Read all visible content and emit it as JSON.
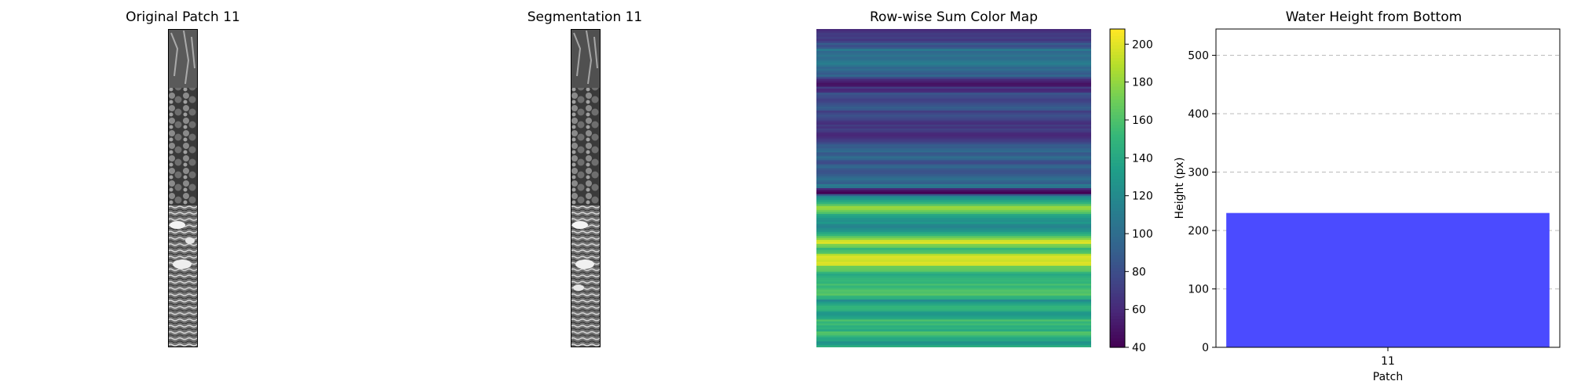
{
  "panels": {
    "original": {
      "title": "Original Patch 11"
    },
    "segmentation": {
      "title": "Segmentation 11"
    },
    "colormap": {
      "title": "Row-wise Sum Color Map",
      "colorbar_ticks": [
        40,
        60,
        80,
        100,
        120,
        140,
        160,
        180,
        200
      ],
      "colorbar_range": [
        40,
        208
      ],
      "row_values": [
        60,
        65,
        70,
        68,
        72,
        66,
        74,
        90,
        80,
        88,
        110,
        96,
        100,
        105,
        98,
        102,
        108,
        112,
        104,
        95,
        100,
        92,
        88,
        96,
        78,
        60,
        55,
        48,
        50,
        70,
        58,
        62,
        85,
        80,
        78,
        72,
        74,
        80,
        84,
        90,
        86,
        70,
        76,
        82,
        78,
        74,
        66,
        62,
        70,
        64,
        72,
        68,
        60,
        58,
        62,
        68,
        72,
        80,
        90,
        88,
        95,
        98,
        86,
        90,
        100,
        94,
        80,
        78,
        92,
        96,
        86,
        82,
        84,
        90,
        96,
        102,
        94,
        90,
        110,
        104,
        60,
        45,
        40,
        90,
        120,
        128,
        140,
        150,
        165,
        182,
        180,
        170,
        160,
        140,
        135,
        128,
        124,
        130,
        118,
        115,
        122,
        128,
        140,
        150,
        165,
        178,
        196,
        200,
        175,
        170,
        150,
        158,
        162,
        190,
        200,
        198,
        195,
        200,
        198,
        170,
        168,
        166,
        150,
        140,
        145,
        150,
        152,
        148,
        158,
        150,
        155,
        162,
        160,
        164,
        150,
        145,
        120,
        132,
        140,
        150,
        150,
        146,
        130,
        128,
        135,
        140,
        160,
        150,
        155,
        145,
        148,
        140,
        162,
        160,
        150,
        140,
        140,
        125,
        130,
        145
      ]
    },
    "barchart": {
      "title": "Water Height from Bottom",
      "xlabel": "Patch",
      "ylabel": "Height (px)"
    }
  },
  "chart_data": {
    "type": "bar",
    "title": "Water Height from Bottom",
    "categories": [
      "11"
    ],
    "values": [
      230
    ],
    "xlabel": "Patch",
    "ylabel": "Height (px)",
    "ylim": [
      0,
      545
    ],
    "yticks": [
      0,
      100,
      200,
      300,
      400,
      500
    ],
    "grid": "y-dashed",
    "bar_color": "#4b4bff"
  }
}
